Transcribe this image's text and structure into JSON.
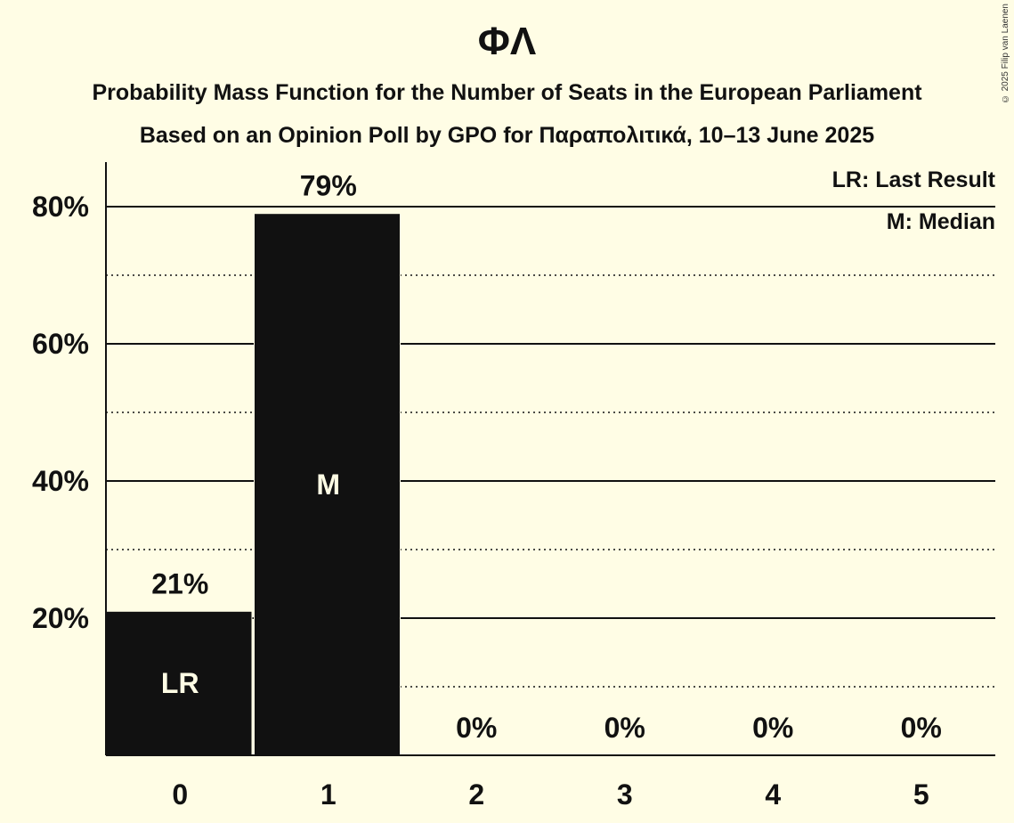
{
  "title": "ΦΛ",
  "subtitle1": "Probability Mass Function for the Number of Seats in the European Parliament",
  "subtitle2": "Based on an Opinion Poll by GPO for Παραπολιτικά, 10–13 June 2025",
  "copyright": "© 2025 Filip van Laenen",
  "legend": {
    "last_result": "LR: Last Result",
    "median": "M: Median"
  },
  "colors": {
    "background": "#fffde5",
    "bar": "#111111",
    "text": "#111111"
  },
  "chart_data": {
    "type": "bar",
    "categories": [
      "0",
      "1",
      "2",
      "3",
      "4",
      "5"
    ],
    "values": [
      21,
      79,
      0,
      0,
      0,
      0
    ],
    "value_labels": [
      "21%",
      "79%",
      "0%",
      "0%",
      "0%",
      "0%"
    ],
    "inner_labels": [
      "LR",
      "M",
      "",
      "",
      "",
      ""
    ],
    "ylim": [
      0,
      86
    ],
    "y_major_ticks": [
      20,
      40,
      60,
      80
    ],
    "y_major_tick_labels": [
      "20%",
      "40%",
      "60%",
      "80%"
    ],
    "y_minor_gridlines": [
      10,
      30,
      50,
      70
    ],
    "grid": true,
    "legend_position": "top-right"
  }
}
